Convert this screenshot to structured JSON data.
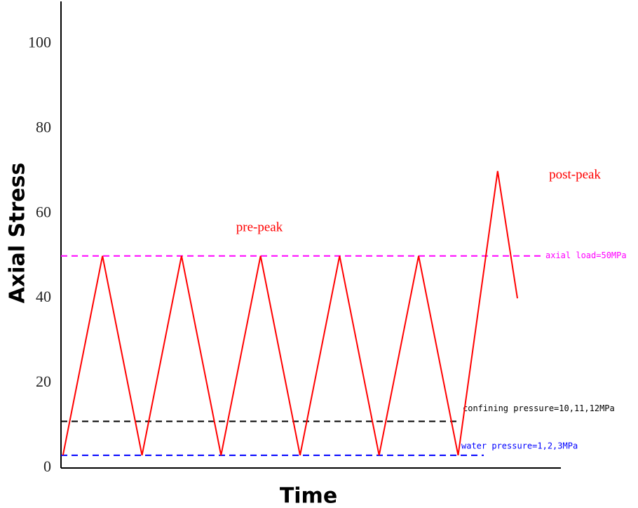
{
  "chart_data": {
    "type": "line",
    "x_label": "Time",
    "y_label": "Axial Stress",
    "x": [
      0,
      1,
      2,
      3,
      4,
      5,
      6,
      7,
      8,
      9,
      10,
      11,
      11.5
    ],
    "values": [
      3,
      50,
      3,
      50,
      3,
      50,
      3,
      50,
      3,
      50,
      3,
      70,
      40
    ],
    "color": "#ff0000",
    "xlim": [
      -0.05,
      12.6
    ],
    "ylim": [
      0,
      110
    ],
    "yticks": [
      0,
      20,
      40,
      60,
      80,
      100
    ],
    "grid": false,
    "reference_lines": [
      {
        "value": 50,
        "label": "axial load=50MPa",
        "color": "#ff00ff"
      },
      {
        "value": 11,
        "label": "confining pressure=10,11,12MPa",
        "color": "#000000"
      },
      {
        "value": 3,
        "label": "water pressure=1,2,3MPa",
        "color": "#0000ff"
      }
    ],
    "annotations": [
      "pre-peak",
      "post-peak"
    ]
  }
}
